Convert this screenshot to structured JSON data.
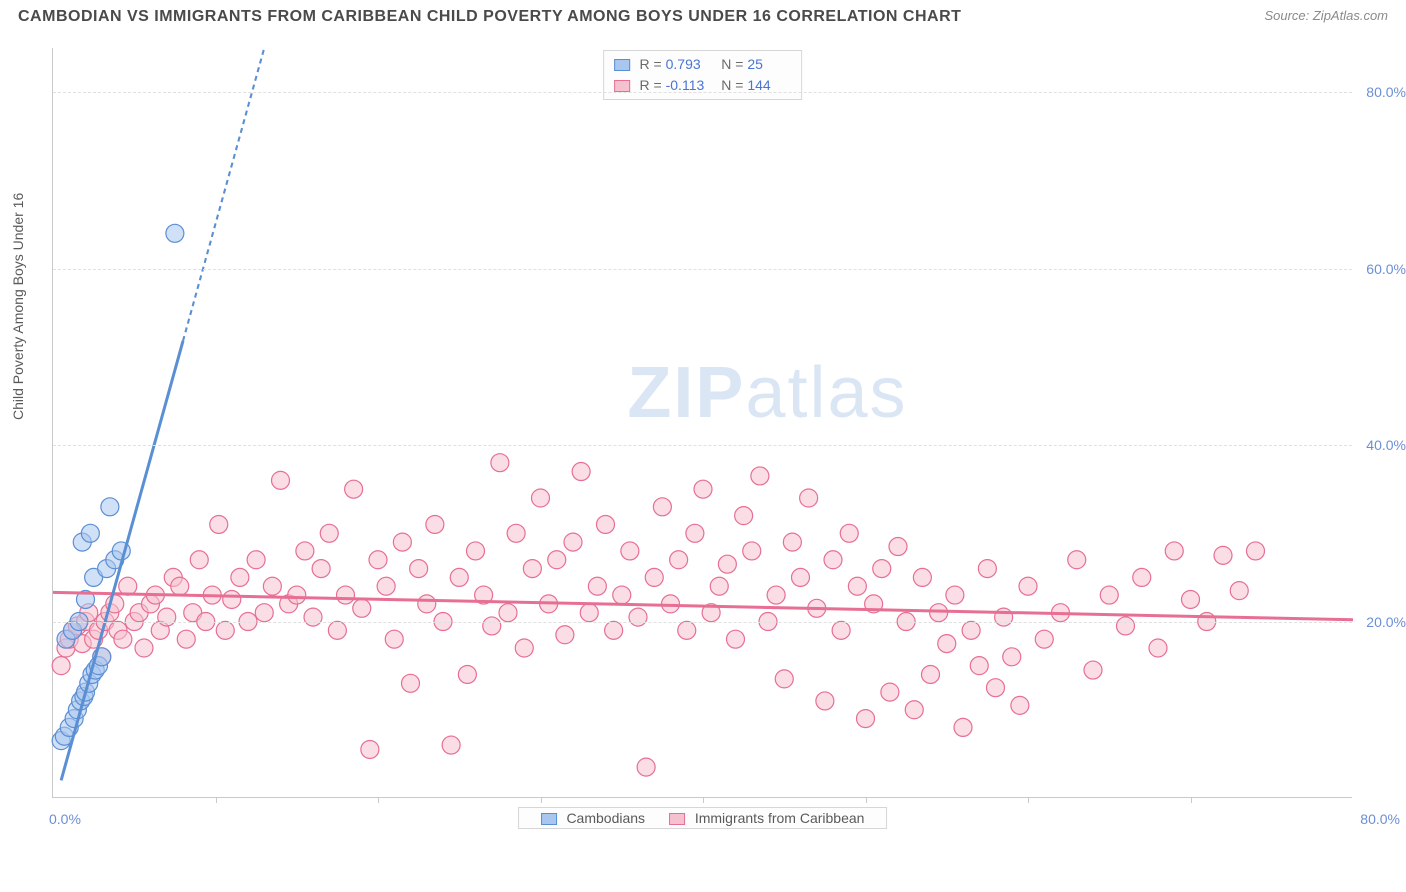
{
  "title": "CAMBODIAN VS IMMIGRANTS FROM CARIBBEAN CHILD POVERTY AMONG BOYS UNDER 16 CORRELATION CHART",
  "source": "Source: ZipAtlas.com",
  "ylabel": "Child Poverty Among Boys Under 16",
  "watermark_a": "ZIP",
  "watermark_b": "atlas",
  "chart": {
    "type": "scatter",
    "xlim": [
      0,
      80
    ],
    "ylim": [
      0,
      85
    ],
    "ytick_labels": [
      "20.0%",
      "40.0%",
      "60.0%",
      "80.0%"
    ],
    "ytick_values": [
      20,
      40,
      60,
      80
    ],
    "xtick_values": [
      10,
      20,
      30,
      40,
      50,
      60,
      70
    ],
    "xlabel_start": "0.0%",
    "xlabel_end": "80.0%",
    "grid_color": "#e0e0e0",
    "axis_color": "#c9c9c9",
    "background_color": "#ffffff",
    "marker_radius": 9,
    "marker_stroke_width": 1.2,
    "trend_line_width": 3,
    "trend_dash": "5,4"
  },
  "series": [
    {
      "name": "Cambodians",
      "fill": "#a9c7ee",
      "stroke": "#5b8fd4",
      "fill_opacity": 0.55,
      "R": "0.793",
      "N": "25",
      "trend": {
        "x1": 0.5,
        "y1": 2,
        "x2": 13,
        "y2": 85,
        "dash_from_x": 8
      },
      "points": [
        [
          0.5,
          6.5
        ],
        [
          0.7,
          7
        ],
        [
          1,
          8
        ],
        [
          1.3,
          9
        ],
        [
          1.5,
          10
        ],
        [
          1.7,
          11
        ],
        [
          1.9,
          11.5
        ],
        [
          2,
          12
        ],
        [
          2.2,
          13
        ],
        [
          2.4,
          14
        ],
        [
          2.6,
          14.5
        ],
        [
          2.8,
          15
        ],
        [
          3,
          16
        ],
        [
          0.8,
          18
        ],
        [
          1.2,
          19
        ],
        [
          1.6,
          20
        ],
        [
          2,
          22.5
        ],
        [
          2.5,
          25
        ],
        [
          3.3,
          26
        ],
        [
          3.8,
          27
        ],
        [
          4.2,
          28
        ],
        [
          1.8,
          29
        ],
        [
          2.3,
          30
        ],
        [
          3.5,
          33
        ],
        [
          7.5,
          64
        ]
      ]
    },
    {
      "name": "Immigrants from Caribbean",
      "fill": "#f6c1cf",
      "stroke": "#e76f94",
      "fill_opacity": 0.55,
      "R": "-0.113",
      "N": "144",
      "trend": {
        "x1": 0,
        "y1": 23.3,
        "x2": 80,
        "y2": 20.2
      },
      "points": [
        [
          0.5,
          15
        ],
        [
          0.8,
          17
        ],
        [
          1,
          18
        ],
        [
          1.2,
          19
        ],
        [
          1.5,
          19.5
        ],
        [
          1.8,
          17.5
        ],
        [
          2,
          20
        ],
        [
          2.2,
          21
        ],
        [
          2.5,
          18
        ],
        [
          2.8,
          19
        ],
        [
          3,
          16
        ],
        [
          3.2,
          20
        ],
        [
          3.5,
          21
        ],
        [
          3.8,
          22
        ],
        [
          4,
          19
        ],
        [
          4.3,
          18
        ],
        [
          4.6,
          24
        ],
        [
          5,
          20
        ],
        [
          5.3,
          21
        ],
        [
          5.6,
          17
        ],
        [
          6,
          22
        ],
        [
          6.3,
          23
        ],
        [
          6.6,
          19
        ],
        [
          7,
          20.5
        ],
        [
          7.4,
          25
        ],
        [
          7.8,
          24
        ],
        [
          8.2,
          18
        ],
        [
          8.6,
          21
        ],
        [
          9,
          27
        ],
        [
          9.4,
          20
        ],
        [
          9.8,
          23
        ],
        [
          10.2,
          31
        ],
        [
          10.6,
          19
        ],
        [
          11,
          22.5
        ],
        [
          11.5,
          25
        ],
        [
          12,
          20
        ],
        [
          12.5,
          27
        ],
        [
          13,
          21
        ],
        [
          13.5,
          24
        ],
        [
          14,
          36
        ],
        [
          14.5,
          22
        ],
        [
          15,
          23
        ],
        [
          15.5,
          28
        ],
        [
          16,
          20.5
        ],
        [
          16.5,
          26
        ],
        [
          17,
          30
        ],
        [
          17.5,
          19
        ],
        [
          18,
          23
        ],
        [
          18.5,
          35
        ],
        [
          19,
          21.5
        ],
        [
          19.5,
          5.5
        ],
        [
          20,
          27
        ],
        [
          20.5,
          24
        ],
        [
          21,
          18
        ],
        [
          21.5,
          29
        ],
        [
          22,
          13
        ],
        [
          22.5,
          26
        ],
        [
          23,
          22
        ],
        [
          23.5,
          31
        ],
        [
          24,
          20
        ],
        [
          24.5,
          6
        ],
        [
          25,
          25
        ],
        [
          25.5,
          14
        ],
        [
          26,
          28
        ],
        [
          26.5,
          23
        ],
        [
          27,
          19.5
        ],
        [
          27.5,
          38
        ],
        [
          28,
          21
        ],
        [
          28.5,
          30
        ],
        [
          29,
          17
        ],
        [
          29.5,
          26
        ],
        [
          30,
          34
        ],
        [
          30.5,
          22
        ],
        [
          31,
          27
        ],
        [
          31.5,
          18.5
        ],
        [
          32,
          29
        ],
        [
          32.5,
          37
        ],
        [
          33,
          21
        ],
        [
          33.5,
          24
        ],
        [
          34,
          31
        ],
        [
          34.5,
          19
        ],
        [
          35,
          23
        ],
        [
          35.5,
          28
        ],
        [
          36,
          20.5
        ],
        [
          36.5,
          3.5
        ],
        [
          37,
          25
        ],
        [
          37.5,
          33
        ],
        [
          38,
          22
        ],
        [
          38.5,
          27
        ],
        [
          39,
          19
        ],
        [
          39.5,
          30
        ],
        [
          40,
          35
        ],
        [
          40.5,
          21
        ],
        [
          41,
          24
        ],
        [
          41.5,
          26.5
        ],
        [
          42,
          18
        ],
        [
          42.5,
          32
        ],
        [
          43,
          28
        ],
        [
          43.5,
          36.5
        ],
        [
          44,
          20
        ],
        [
          44.5,
          23
        ],
        [
          45,
          13.5
        ],
        [
          45.5,
          29
        ],
        [
          46,
          25
        ],
        [
          46.5,
          34
        ],
        [
          47,
          21.5
        ],
        [
          47.5,
          11
        ],
        [
          48,
          27
        ],
        [
          48.5,
          19
        ],
        [
          49,
          30
        ],
        [
          49.5,
          24
        ],
        [
          50,
          9
        ],
        [
          50.5,
          22
        ],
        [
          51,
          26
        ],
        [
          51.5,
          12
        ],
        [
          52,
          28.5
        ],
        [
          52.5,
          20
        ],
        [
          53,
          10
        ],
        [
          53.5,
          25
        ],
        [
          54,
          14
        ],
        [
          54.5,
          21
        ],
        [
          55,
          17.5
        ],
        [
          55.5,
          23
        ],
        [
          56,
          8
        ],
        [
          56.5,
          19
        ],
        [
          57,
          15
        ],
        [
          57.5,
          26
        ],
        [
          58,
          12.5
        ],
        [
          58.5,
          20.5
        ],
        [
          59,
          16
        ],
        [
          59.5,
          10.5
        ],
        [
          60,
          24
        ],
        [
          61,
          18
        ],
        [
          62,
          21
        ],
        [
          63,
          27
        ],
        [
          64,
          14.5
        ],
        [
          65,
          23
        ],
        [
          66,
          19.5
        ],
        [
          67,
          25
        ],
        [
          68,
          17
        ],
        [
          69,
          28
        ],
        [
          70,
          22.5
        ],
        [
          71,
          20
        ],
        [
          72,
          27.5
        ],
        [
          73,
          23.5
        ],
        [
          74,
          28
        ]
      ]
    }
  ],
  "stats_labels": {
    "R": "R =",
    "N": "N ="
  },
  "legend": {
    "item1": "Cambodians",
    "item2": "Immigrants from Caribbean"
  }
}
